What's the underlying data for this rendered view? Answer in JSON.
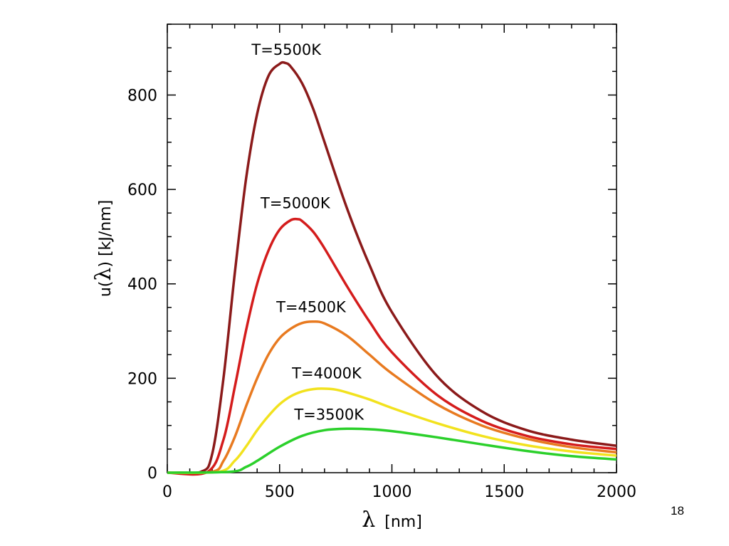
{
  "chart_data": {
    "type": "line",
    "xlabel_symbol": "λ",
    "xlabel_unit": "[nm]",
    "ylabel_prefix": "u(",
    "ylabel_symbol": "λ",
    "ylabel_suffix": ")  [kJ/nm]",
    "xlim": [
      0,
      2000
    ],
    "ylim": [
      0,
      950
    ],
    "x_ticks": [
      0,
      500,
      1000,
      1500,
      2000
    ],
    "y_ticks": [
      0,
      200,
      400,
      600,
      800
    ],
    "grid": false,
    "legend": "none",
    "series": [
      {
        "name": "T=5500K",
        "color": "#8b1a1a",
        "x": [
          0,
          150,
          200,
          250,
          300,
          350,
          400,
          450,
          500,
          525,
          550,
          600,
          650,
          700,
          800,
          900,
          1000,
          1200,
          1400,
          1600,
          1800,
          2000
        ],
        "y": [
          0,
          2,
          40,
          200,
          420,
          620,
          760,
          840,
          866,
          868,
          860,
          825,
          770,
          700,
          560,
          440,
          340,
          205,
          130,
          90,
          70,
          57
        ]
      },
      {
        "name": "T=5000K",
        "color": "#d41c1c",
        "x": [
          0,
          180,
          250,
          300,
          350,
          400,
          450,
          500,
          550,
          580,
          600,
          650,
          700,
          800,
          900,
          1000,
          1200,
          1400,
          1600,
          1800,
          2000
        ],
        "y": [
          0,
          2,
          70,
          180,
          300,
          400,
          470,
          515,
          535,
          537,
          533,
          510,
          475,
          395,
          320,
          255,
          165,
          110,
          78,
          60,
          50
        ]
      },
      {
        "name": "T=4500K",
        "color": "#e87a20",
        "x": [
          0,
          200,
          250,
          300,
          350,
          400,
          450,
          500,
          550,
          600,
          650,
          700,
          800,
          900,
          1000,
          1200,
          1400,
          1600,
          1800,
          2000
        ],
        "y": [
          0,
          2,
          25,
          75,
          140,
          200,
          250,
          285,
          305,
          317,
          320,
          316,
          290,
          250,
          210,
          145,
          100,
          72,
          54,
          43
        ]
      },
      {
        "name": "T=4000K",
        "color": "#f2e21e",
        "x": [
          0,
          230,
          300,
          350,
          400,
          450,
          500,
          550,
          600,
          650,
          700,
          750,
          800,
          900,
          1000,
          1200,
          1400,
          1600,
          1800,
          2000
        ],
        "y": [
          0,
          2,
          25,
          55,
          90,
          120,
          145,
          162,
          172,
          177,
          178,
          176,
          170,
          155,
          137,
          105,
          78,
          58,
          45,
          36
        ]
      },
      {
        "name": "T=3500K",
        "color": "#2bd02b",
        "x": [
          0,
          280,
          350,
          400,
          500,
          600,
          700,
          800,
          900,
          1000,
          1200,
          1400,
          1600,
          1800,
          2000
        ],
        "y": [
          0,
          2,
          12,
          25,
          55,
          78,
          90,
          93,
          92,
          88,
          75,
          60,
          46,
          35,
          28
        ]
      }
    ],
    "annotations": [
      {
        "text": "T=5500K",
        "x": 530,
        "y": 885
      },
      {
        "text": "T=5000K",
        "x": 570,
        "y": 560
      },
      {
        "text": "T=4500K",
        "x": 640,
        "y": 340
      },
      {
        "text": "T=4000K",
        "x": 710,
        "y": 200
      },
      {
        "text": "T=3500K",
        "x": 720,
        "y": 112
      }
    ]
  },
  "page_number": "18"
}
